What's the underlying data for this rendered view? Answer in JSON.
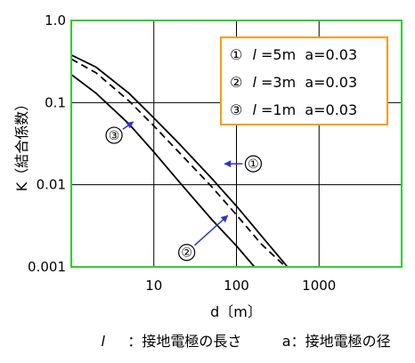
{
  "chart_data": {
    "type": "line",
    "title": "",
    "xlabel": "d〔m〕",
    "ylabel": "K（結合係数）",
    "x_scale": "log",
    "y_scale": "log",
    "xlim": [
      1,
      10000
    ],
    "ylim": [
      0.001,
      1.0
    ],
    "grid": true,
    "x_ticks": [
      {
        "value": 10,
        "label": "10"
      },
      {
        "value": 100,
        "label": "100"
      },
      {
        "value": 1000,
        "label": "1000"
      }
    ],
    "y_ticks": [
      {
        "value": 1.0,
        "label": "1.0"
      },
      {
        "value": 0.1,
        "label": "0.1"
      },
      {
        "value": 0.01,
        "label": "0.01"
      },
      {
        "value": 0.001,
        "label": "0.001"
      }
    ],
    "legend_position": "top-right",
    "legend": [
      {
        "marker": "①",
        "l_label": "l",
        "text": "=5m  a=0.03"
      },
      {
        "marker": "②",
        "l_label": "l",
        "text": "=3m  a=0.03"
      },
      {
        "marker": "③",
        "l_label": "l",
        "text": "=1m  a=0.03"
      }
    ],
    "series": [
      {
        "name": "①",
        "style": "solid",
        "points": [
          [
            1,
            0.38
          ],
          [
            2,
            0.27
          ],
          [
            5,
            0.13
          ],
          [
            10,
            0.065
          ],
          [
            20,
            0.032
          ],
          [
            50,
            0.012
          ],
          [
            100,
            0.0055
          ],
          [
            200,
            0.0024
          ],
          [
            500,
            0.0008
          ]
        ]
      },
      {
        "name": "②",
        "style": "dashed",
        "points": [
          [
            1,
            0.34
          ],
          [
            2,
            0.23
          ],
          [
            5,
            0.105
          ],
          [
            10,
            0.052
          ],
          [
            20,
            0.025
          ],
          [
            50,
            0.0095
          ],
          [
            100,
            0.0043
          ],
          [
            200,
            0.0019
          ],
          [
            500,
            0.0008
          ]
        ]
      },
      {
        "name": "③",
        "style": "solid",
        "points": [
          [
            1,
            0.22
          ],
          [
            2,
            0.13
          ],
          [
            5,
            0.055
          ],
          [
            10,
            0.025
          ],
          [
            20,
            0.011
          ],
          [
            50,
            0.0038
          ],
          [
            100,
            0.0018
          ],
          [
            200,
            0.0008
          ]
        ]
      }
    ],
    "annotations": [
      {
        "label": "③",
        "text_at": [
          3.3,
          0.04
        ],
        "arrow_to": [
          5.6,
          0.058
        ]
      },
      {
        "label": "①",
        "text_at": [
          160,
          0.018
        ],
        "arrow_to": [
          72,
          0.018
        ]
      },
      {
        "label": "②",
        "text_at": [
          25,
          0.0015
        ],
        "arrow_to": [
          78,
          0.0042
        ]
      }
    ],
    "caption": {
      "part1_symbol": "l",
      "part1_text": "：接地電極の長さ",
      "part2_text": "a：接地電極の径"
    },
    "colors": {
      "frame": "#33cc33",
      "legend_border": "#ff9900",
      "grid": "#000000",
      "arrow": "#3333cc",
      "line": "#000000"
    }
  }
}
